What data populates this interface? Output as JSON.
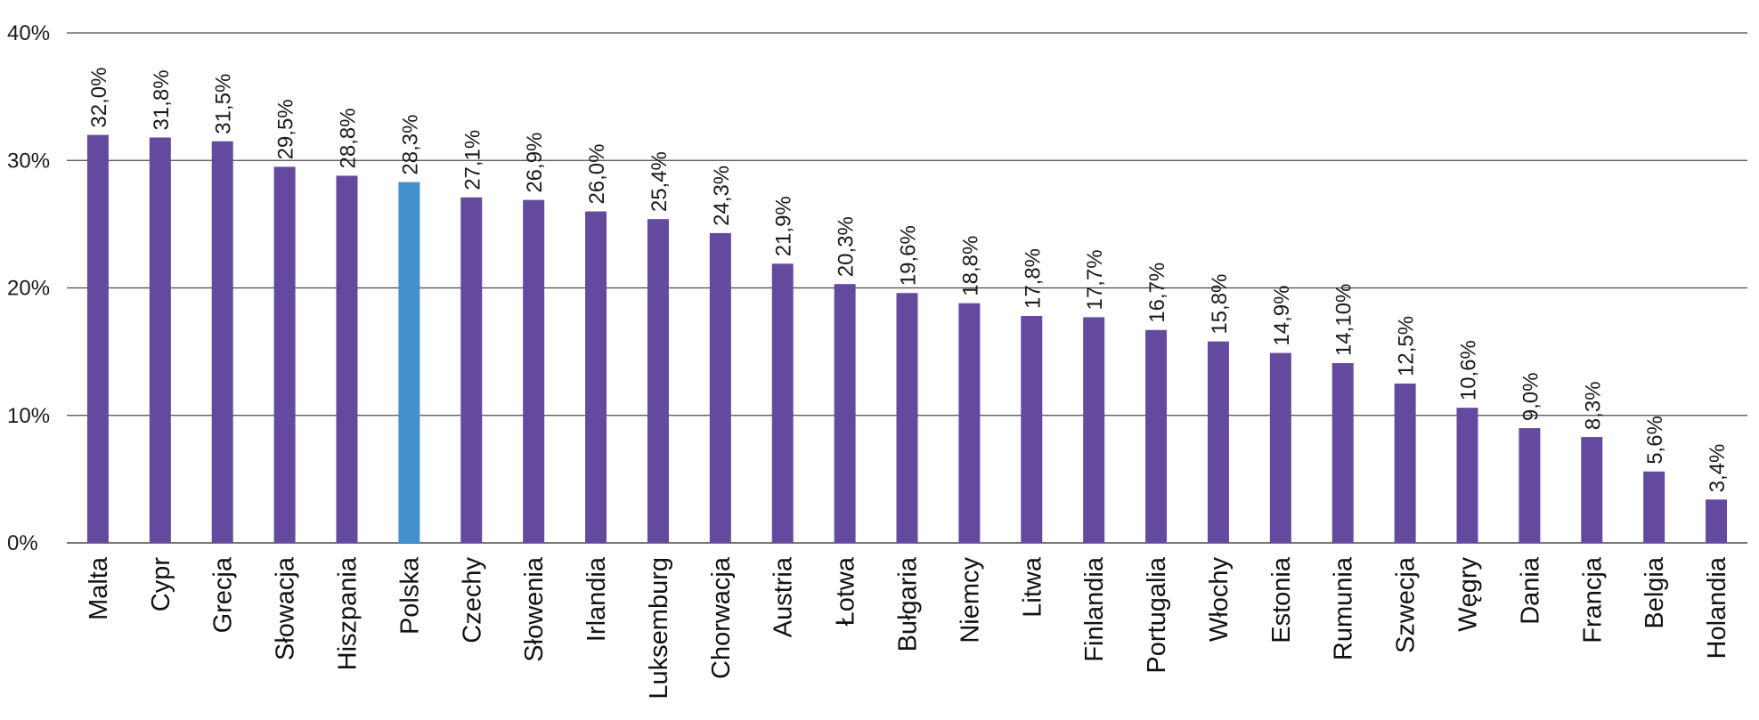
{
  "chart_data": {
    "type": "bar",
    "title": "",
    "xlabel": "",
    "ylabel": "",
    "ylim": [
      0,
      40
    ],
    "yticks": [
      0,
      10,
      20,
      30,
      40
    ],
    "ytick_labels": [
      "0%",
      "10%",
      "20%",
      "30%",
      "40%"
    ],
    "grid": true,
    "legend": "none",
    "categories": [
      "Malta",
      "Cypr",
      "Grecja",
      "Słowacja",
      "Hiszpania",
      "Polska",
      "Czechy",
      "Słowenia",
      "Irlandia",
      "Luksemburg",
      "Chorwacja",
      "Austria",
      "Łotwa",
      "Bułgaria",
      "Niemcy",
      "Litwa",
      "Finlandia",
      "Portugalia",
      "Włochy",
      "Estonia",
      "Rumunia",
      "Szwecja",
      "Węgry",
      "Dania",
      "Francja",
      "Belgia",
      "Holandia"
    ],
    "values": [
      32.0,
      31.8,
      31.5,
      29.5,
      28.8,
      28.3,
      27.1,
      26.9,
      26.0,
      25.4,
      24.3,
      21.9,
      20.3,
      19.6,
      18.8,
      17.8,
      17.7,
      16.7,
      15.8,
      14.9,
      14.1,
      12.5,
      10.6,
      9.0,
      8.3,
      5.6,
      3.4
    ],
    "value_labels": [
      "32,0%",
      "31,8%",
      "31,5%",
      "29,5%",
      "28,8%",
      "28,3%",
      "27,1%",
      "26,9%",
      "26,0%",
      "25,4%",
      "24,3%",
      "21,9%",
      "20,3%",
      "19,6%",
      "18,8%",
      "17,8%",
      "17,7%",
      "16,7%",
      "15,8%",
      "14,9%",
      "14,10%",
      "12,5%",
      "10,6%",
      "9,0%",
      "8,3%",
      "5,6%",
      "3,4%"
    ],
    "colors": {
      "default": "#634a9e",
      "highlight": "#4390cd"
    },
    "highlight_category": "Polska"
  }
}
